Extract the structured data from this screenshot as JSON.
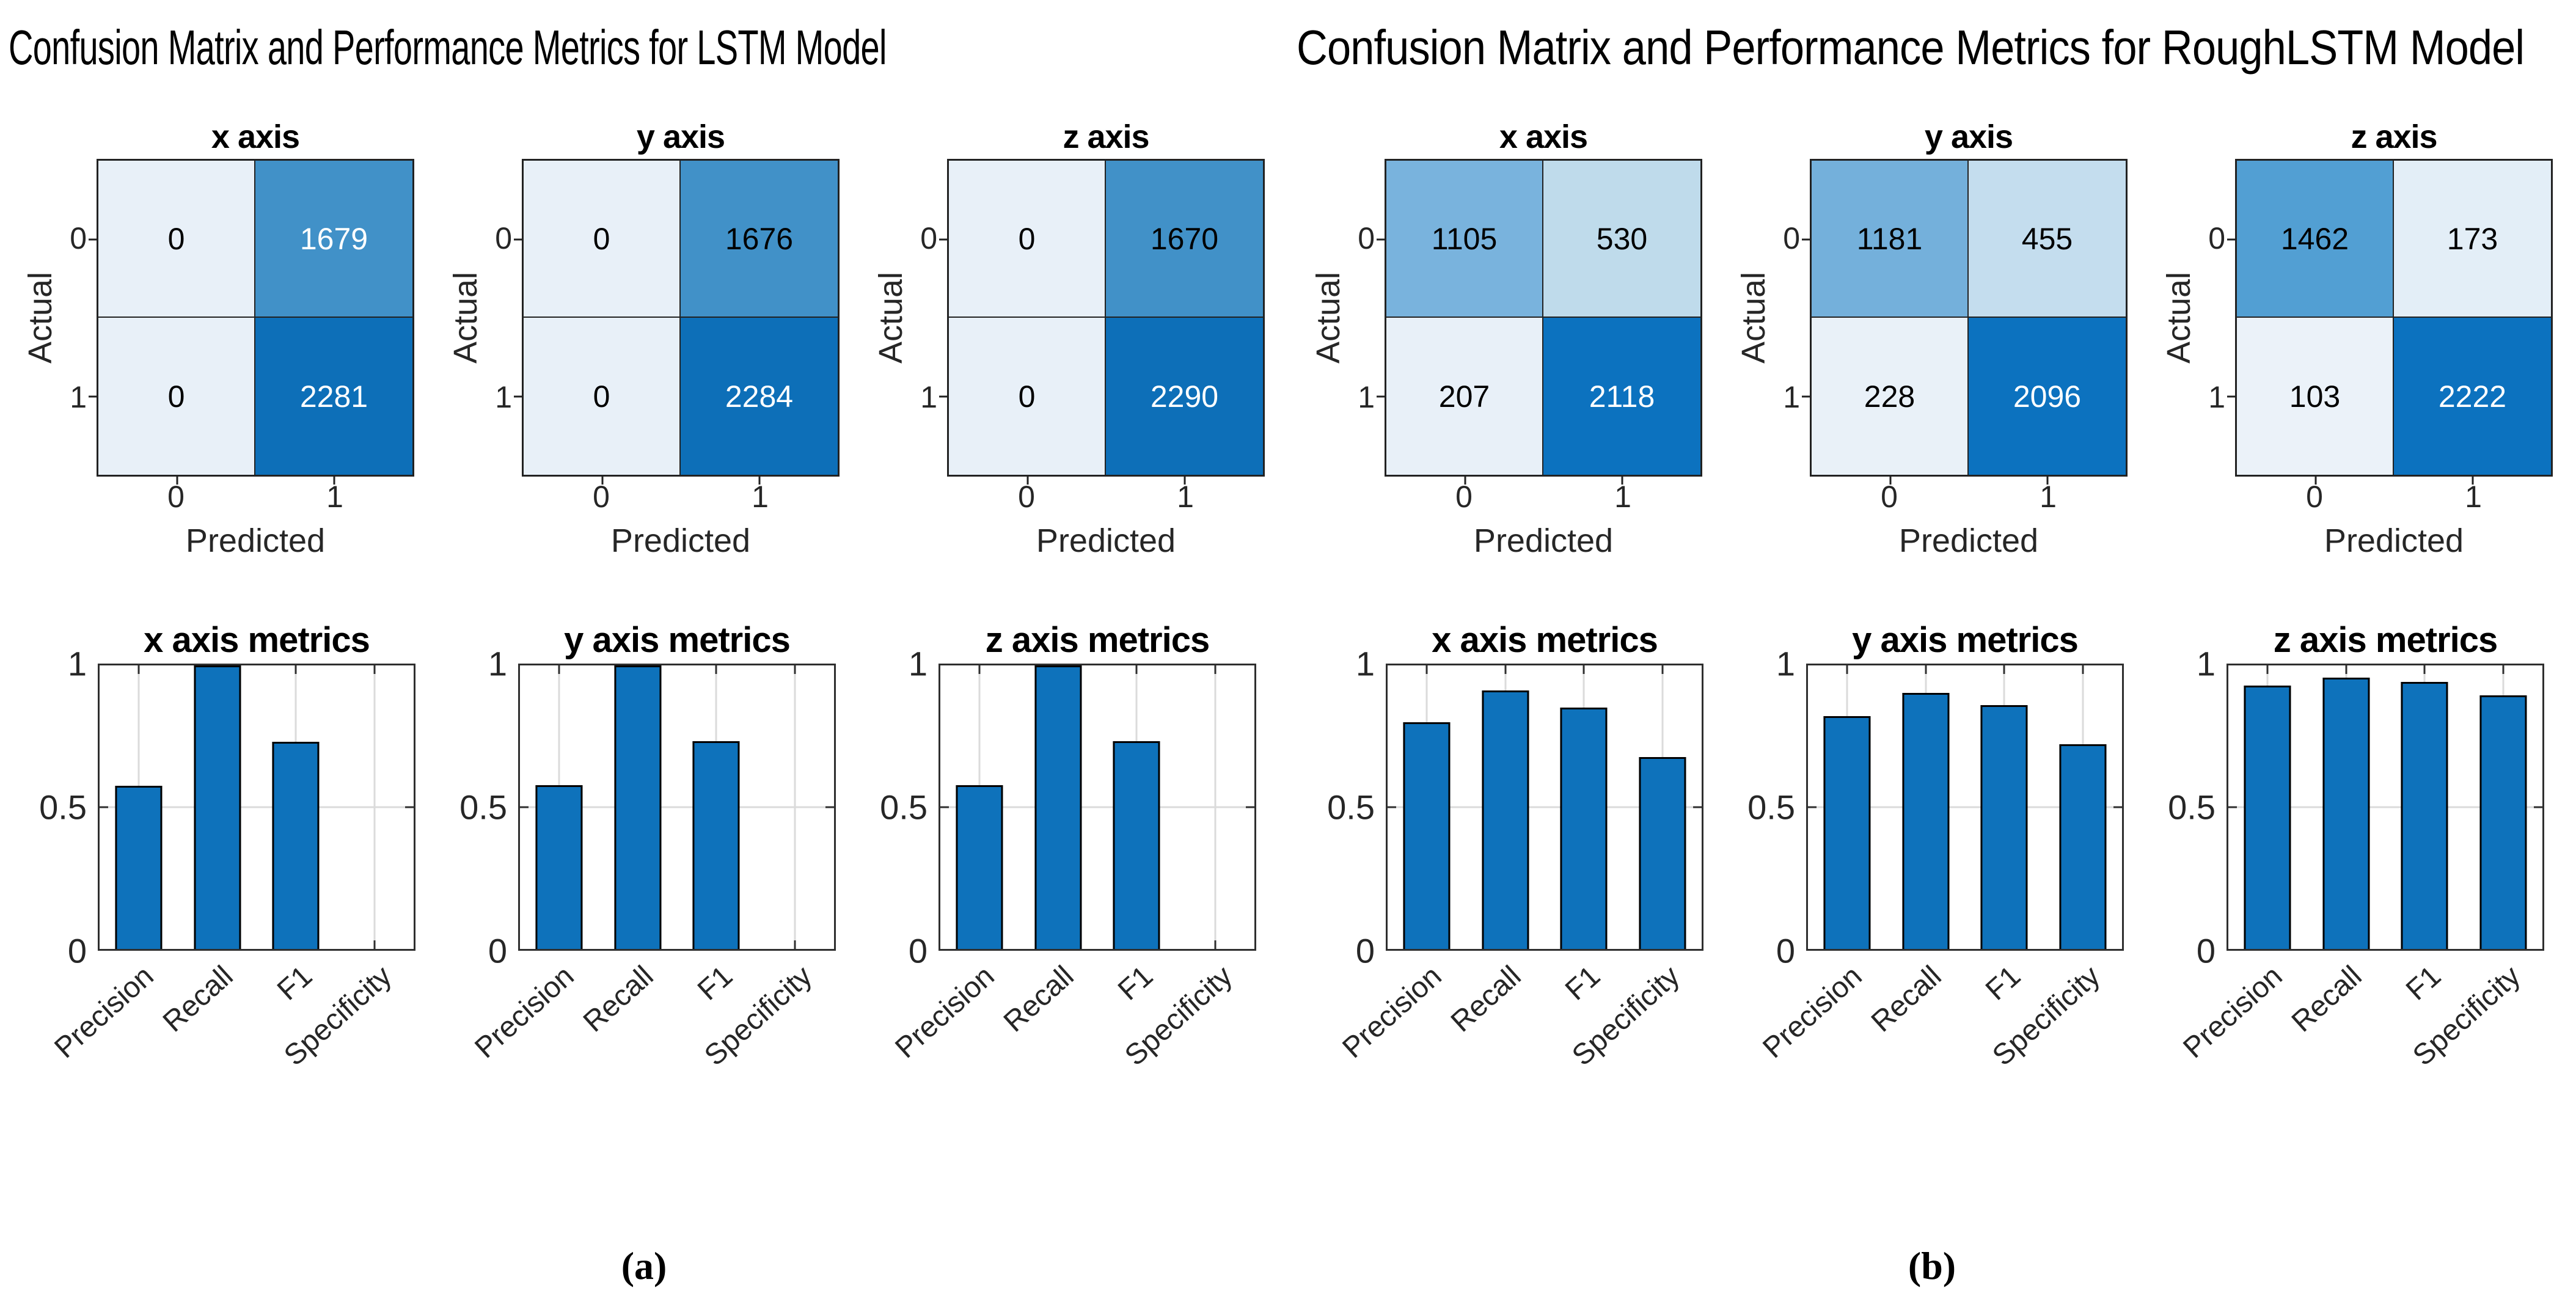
{
  "chart_data": {
    "panels": [
      {
        "caption": "(a)",
        "title": "Confusion Matrix and Performance Metrics for LSTM Model",
        "matrices": [
          {
            "type": "heatmap",
            "title": "x axis",
            "xlabel": "Predicted",
            "ylabel": "Actual",
            "xticklabels": [
              "0",
              "1"
            ],
            "yticklabels": [
              "0",
              "1"
            ],
            "values": [
              [
                0,
                1679
              ],
              [
                0,
                2281
              ]
            ],
            "cell_colors": [
              [
                "#e8f0f8",
                "#4191c8"
              ],
              [
                "#e8f0f8",
                "#0d6fb8"
              ]
            ],
            "text_colors": [
              [
                "#000000",
                "#ffffff"
              ],
              [
                "#000000",
                "#ffffff"
              ]
            ]
          },
          {
            "type": "heatmap",
            "title": "y axis",
            "xlabel": "Predicted",
            "ylabel": "Actual",
            "xticklabels": [
              "0",
              "1"
            ],
            "yticklabels": [
              "0",
              "1"
            ],
            "values": [
              [
                0,
                1676
              ],
              [
                0,
                2284
              ]
            ],
            "cell_colors": [
              [
                "#e8f0f8",
                "#4191c8"
              ],
              [
                "#e8f0f8",
                "#0d6fb8"
              ]
            ],
            "text_colors": [
              [
                "#000000",
                "#000000"
              ],
              [
                "#000000",
                "#ffffff"
              ]
            ]
          },
          {
            "type": "heatmap",
            "title": "z axis",
            "xlabel": "Predicted",
            "ylabel": "Actual",
            "xticklabels": [
              "0",
              "1"
            ],
            "yticklabels": [
              "0",
              "1"
            ],
            "values": [
              [
                0,
                1670
              ],
              [
                0,
                2290
              ]
            ],
            "cell_colors": [
              [
                "#e8f0f8",
                "#4191c8"
              ],
              [
                "#e8f0f8",
                "#0d6fb8"
              ]
            ],
            "text_colors": [
              [
                "#000000",
                "#000000"
              ],
              [
                "#000000",
                "#ffffff"
              ]
            ]
          }
        ],
        "bar_charts": [
          {
            "type": "bar",
            "title": "x axis metrics",
            "categories": [
              "Precision",
              "Recall",
              "F1",
              "Specificity"
            ],
            "values": [
              0.576,
              1.0,
              0.731,
              0.0
            ],
            "ylim": [
              0,
              1
            ],
            "yticks": [
              "1",
              "0.5",
              "0"
            ],
            "grid": true
          },
          {
            "type": "bar",
            "title": "y axis metrics",
            "categories": [
              "Precision",
              "Recall",
              "F1",
              "Specificity"
            ],
            "values": [
              0.577,
              1.0,
              0.732,
              0.0
            ],
            "ylim": [
              0,
              1
            ],
            "yticks": [
              "1",
              "0.5",
              "0"
            ],
            "grid": true
          },
          {
            "type": "bar",
            "title": "z axis metrics",
            "categories": [
              "Precision",
              "Recall",
              "F1",
              "Specificity"
            ],
            "values": [
              0.578,
              1.0,
              0.733,
              0.0
            ],
            "ylim": [
              0,
              1
            ],
            "yticks": [
              "1",
              "0.5",
              "0"
            ],
            "grid": true
          }
        ]
      },
      {
        "caption": "(b)",
        "title": "Confusion Matrix and Performance Metrics for RoughLSTM Model",
        "matrices": [
          {
            "type": "heatmap",
            "title": "x axis",
            "xlabel": "Predicted",
            "ylabel": "Actual",
            "xticklabels": [
              "0",
              "1"
            ],
            "yticklabels": [
              "0",
              "1"
            ],
            "values": [
              [
                1105,
                530
              ],
              [
                207,
                2118
              ]
            ],
            "cell_colors": [
              [
                "#79b3dd",
                "#bfdbeb"
              ],
              [
                "#e8f0f8",
                "#0c72bf"
              ]
            ],
            "text_colors": [
              [
                "#000000",
                "#000000"
              ],
              [
                "#000000",
                "#ffffff"
              ]
            ]
          },
          {
            "type": "heatmap",
            "title": "y axis",
            "xlabel": "Predicted",
            "ylabel": "Actual",
            "xticklabels": [
              "0",
              "1"
            ],
            "yticklabels": [
              "0",
              "1"
            ],
            "values": [
              [
                1181,
                455
              ],
              [
                228,
                2096
              ]
            ],
            "cell_colors": [
              [
                "#74b0db",
                "#c4ddee"
              ],
              [
                "#e9f1f8",
                "#0c72bf"
              ]
            ],
            "text_colors": [
              [
                "#000000",
                "#000000"
              ],
              [
                "#000000",
                "#ffffff"
              ]
            ]
          },
          {
            "type": "heatmap",
            "title": "z axis",
            "xlabel": "Predicted",
            "ylabel": "Actual",
            "xticklabels": [
              "0",
              "1"
            ],
            "yticklabels": [
              "0",
              "1"
            ],
            "values": [
              [
                1462,
                173
              ],
              [
                103,
                2222
              ]
            ],
            "cell_colors": [
              [
                "#529fd3",
                "#e3eef7"
              ],
              [
                "#ebf2f9",
                "#0c72bf"
              ]
            ],
            "text_colors": [
              [
                "#000000",
                "#000000"
              ],
              [
                "#000000",
                "#ffffff"
              ]
            ]
          }
        ],
        "bar_charts": [
          {
            "type": "bar",
            "title": "x axis metrics",
            "categories": [
              "Precision",
              "Recall",
              "F1",
              "Specificity"
            ],
            "values": [
              0.8,
              0.911,
              0.852,
              0.676
            ],
            "ylim": [
              0,
              1
            ],
            "yticks": [
              "1",
              "0.5",
              "0"
            ],
            "grid": true
          },
          {
            "type": "bar",
            "title": "y axis metrics",
            "categories": [
              "Precision",
              "Recall",
              "F1",
              "Specificity"
            ],
            "values": [
              0.822,
              0.902,
              0.86,
              0.722
            ],
            "ylim": [
              0,
              1
            ],
            "yticks": [
              "1",
              "0.5",
              "0"
            ],
            "grid": true
          },
          {
            "type": "bar",
            "title": "z axis metrics",
            "categories": [
              "Precision",
              "Recall",
              "F1",
              "Specificity"
            ],
            "values": [
              0.928,
              0.956,
              0.941,
              0.894
            ],
            "ylim": [
              0,
              1
            ],
            "yticks": [
              "1",
              "0.5",
              "0"
            ],
            "grid": true
          }
        ]
      }
    ],
    "style": {
      "bar_fill": "#0e72bb",
      "bar_edge": "#000000",
      "grid_color": "#dbdbdb",
      "frame_color": "#2f2f2f",
      "tick_text_color": "#262626"
    }
  }
}
